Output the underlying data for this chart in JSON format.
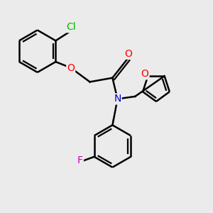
{
  "background_color": "#ebebeb",
  "bond_color": "#000000",
  "bond_width": 1.8,
  "atom_colors": {
    "O": "#ff0000",
    "N": "#0000cc",
    "Cl": "#00bb00",
    "F": "#cc00cc",
    "C": "#000000"
  },
  "font_size_atom": 10
}
